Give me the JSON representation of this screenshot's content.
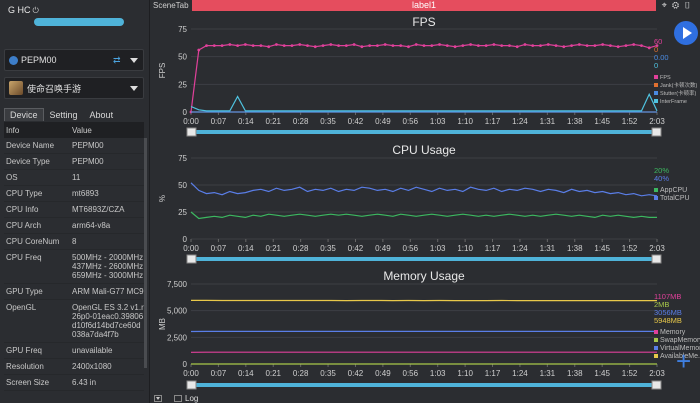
{
  "user": {
    "name": "G HC",
    "power_icon": "power-icon"
  },
  "device_select": {
    "value": "PEPM00",
    "icon": "phone-chip-icon"
  },
  "app_select": {
    "value": "使命召唤手游"
  },
  "tabs": [
    {
      "label": "Device",
      "active": true
    },
    {
      "label": "Setting",
      "active": false
    },
    {
      "label": "About",
      "active": false
    }
  ],
  "table": {
    "headers": [
      "Info",
      "Value"
    ],
    "rows": [
      [
        "Device Name",
        "PEPM00"
      ],
      [
        "Device Type",
        "PEPM00"
      ],
      [
        "OS",
        "11"
      ],
      [
        "CPU Type",
        "mt6893"
      ],
      [
        "CPU Info",
        "MT6893Z/CZA"
      ],
      [
        "CPU Arch",
        "arm64-v8a"
      ],
      [
        "CPU CoreNum",
        "8"
      ],
      [
        "CPU Freq",
        "500MHz - 2000MHz 437MHz - 2600MHz 659MHz - 3000MHz"
      ],
      [
        "GPU Type",
        "ARM Mali-G77 MC9"
      ],
      [
        "OpenGL",
        "OpenGL ES 3.2 v1.r26p0-01eac0.39806d10f6d14bd7ce60d038a7da4f7b"
      ],
      [
        "GPU Freq",
        "unavailable"
      ],
      [
        "Resolution",
        "2400x1080"
      ],
      [
        "Screen Size",
        "6.43 in"
      ]
    ]
  },
  "scene_tab": "SceneTab",
  "label_bar": "label1",
  "bottom": {
    "log_label": "Log"
  },
  "colors": {
    "accent": "#2f6fe0",
    "label_bar": "#e54d5e",
    "slider": "#4fb3d9"
  },
  "x_ticks": [
    "0:00",
    "0:07",
    "0:14",
    "0:21",
    "0:28",
    "0:35",
    "0:42",
    "0:49",
    "0:56",
    "1:03",
    "1:10",
    "1:17",
    "1:24",
    "1:31",
    "1:38",
    "1:45",
    "1:52",
    "2:03"
  ],
  "charts": [
    {
      "id": "fps",
      "title": "FPS",
      "ylabel": "FPS",
      "ylim": [
        0,
        75
      ],
      "yticks": [
        "0",
        "25",
        "50",
        "75"
      ],
      "current_values": [
        {
          "text": "60",
          "color": "#e0409a"
        },
        {
          "text": "0",
          "color": "#e07030"
        },
        {
          "text": "0.00",
          "color": "#4a8ae0"
        },
        {
          "text": "0",
          "color": "#4fc3e0"
        }
      ],
      "legend": [
        {
          "label": "FPS",
          "color": "#e0409a"
        },
        {
          "label": "Jank(卡顿次数)",
          "color": "#e07030"
        },
        {
          "label": "Stutter(卡顿率)",
          "color": "#4a8ae0"
        },
        {
          "label": "InterFrame",
          "color": "#4fc3e0"
        }
      ]
    },
    {
      "id": "cpu",
      "title": "CPU Usage",
      "ylabel": "%",
      "ylim": [
        0,
        75
      ],
      "yticks": [
        "0",
        "25",
        "50",
        "75"
      ],
      "current_values": [
        {
          "text": "20%",
          "color": "#3cb860"
        },
        {
          "text": "40%",
          "color": "#5a7ee8"
        }
      ],
      "legend": [
        {
          "label": "AppCPU",
          "color": "#3cb860"
        },
        {
          "label": "TotalCPU",
          "color": "#5a7ee8"
        }
      ]
    },
    {
      "id": "memory",
      "title": "Memory Usage",
      "ylabel": "MB",
      "ylim": [
        0,
        7500
      ],
      "yticks": [
        "0",
        "2,500",
        "5,000",
        "7,500"
      ],
      "current_values": [
        {
          "text": "1107MB",
          "color": "#e0409a"
        },
        {
          "text": "2MB",
          "color": "#a8c84a"
        },
        {
          "text": "3056MB",
          "color": "#5a7ee8"
        },
        {
          "text": "5948MB",
          "color": "#e8c84a"
        }
      ],
      "legend": [
        {
          "label": "Memory",
          "color": "#e0409a"
        },
        {
          "label": "SwapMemory",
          "color": "#a8c84a"
        },
        {
          "label": "VirtualMemory",
          "color": "#5a7ee8"
        },
        {
          "label": "AvailableMe...",
          "color": "#e8c84a"
        }
      ]
    }
  ],
  "chart_data": [
    {
      "type": "line",
      "title": "FPS",
      "xlabel": "",
      "ylabel": "FPS",
      "ylim": [
        0,
        75
      ],
      "x_range": [
        "0:00",
        "2:03"
      ],
      "series": [
        {
          "name": "FPS",
          "values": [
            0,
            56,
            60,
            60,
            60,
            61,
            60,
            61,
            60,
            60,
            59,
            61,
            60,
            60,
            61,
            60,
            59,
            60,
            61,
            60,
            60,
            61,
            59,
            60,
            60,
            61,
            60,
            60,
            59,
            61,
            60,
            60,
            61,
            60,
            59,
            60,
            61,
            60,
            60,
            61,
            60,
            60,
            59,
            61,
            60,
            60,
            61,
            60,
            59,
            60,
            61,
            60,
            60,
            61,
            60,
            59,
            60,
            61,
            60,
            58,
            60
          ]
        },
        {
          "name": "Jank(卡顿次数)",
          "values": [
            0,
            0,
            0,
            0,
            0,
            0,
            0,
            0,
            0,
            0,
            0,
            0,
            0,
            0,
            0,
            0,
            0,
            0,
            0,
            0,
            0,
            0,
            0,
            0,
            0,
            0,
            0,
            0,
            0,
            0,
            0,
            0,
            0,
            0,
            0,
            0,
            0,
            0,
            0,
            0,
            0,
            0,
            0,
            0,
            0,
            0,
            0,
            0,
            0,
            0,
            0,
            0,
            0,
            0,
            0,
            0,
            0,
            0,
            0,
            0,
            0
          ]
        },
        {
          "name": "Stutter(卡顿率)",
          "values": [
            0,
            0,
            0,
            0,
            0,
            0,
            0,
            0,
            0,
            0,
            0,
            0,
            0,
            0,
            0,
            0,
            0,
            0,
            0,
            0,
            0,
            0,
            0,
            0,
            0,
            0,
            0,
            0,
            0,
            0,
            0,
            0,
            0,
            0,
            0,
            0,
            0,
            0,
            0,
            0,
            0,
            0,
            0,
            0,
            0,
            0,
            0,
            0,
            0,
            0,
            0,
            0,
            0,
            0,
            0,
            0,
            0,
            0,
            0,
            0,
            0
          ]
        },
        {
          "name": "InterFrame",
          "values": [
            5,
            2,
            1,
            1,
            1,
            1,
            14,
            1,
            1,
            1,
            1,
            1,
            1,
            1,
            1,
            1,
            1,
            1,
            1,
            1,
            1,
            1,
            1,
            1,
            1,
            1,
            1,
            1,
            1,
            1,
            1,
            1,
            1,
            1,
            1,
            1,
            1,
            1,
            1,
            1,
            1,
            1,
            1,
            1,
            1,
            1,
            1,
            1,
            1,
            1,
            1,
            1,
            1,
            1,
            1,
            1,
            1,
            1,
            1,
            16,
            1
          ]
        }
      ]
    },
    {
      "type": "line",
      "title": "CPU Usage",
      "xlabel": "",
      "ylabel": "%",
      "ylim": [
        0,
        75
      ],
      "x_range": [
        "0:00",
        "2:03"
      ],
      "series": [
        {
          "name": "AppCPU",
          "values": [
            25,
            19,
            20,
            21,
            20,
            22,
            21,
            20,
            22,
            21,
            23,
            22,
            21,
            22,
            23,
            22,
            21,
            22,
            23,
            22,
            23,
            22,
            21,
            22,
            23,
            22,
            21,
            23,
            22,
            21,
            22,
            23,
            22,
            21,
            22,
            23,
            22,
            21,
            22,
            21,
            22,
            23,
            22,
            21,
            22,
            21,
            22,
            23,
            22,
            21,
            22,
            21,
            20,
            22,
            21,
            22,
            21,
            20,
            21,
            20,
            20
          ]
        },
        {
          "name": "TotalCPU",
          "values": [
            52,
            45,
            42,
            43,
            41,
            44,
            42,
            43,
            45,
            46,
            44,
            47,
            45,
            46,
            48,
            44,
            46,
            45,
            47,
            44,
            46,
            45,
            48,
            47,
            45,
            46,
            44,
            47,
            45,
            48,
            46,
            44,
            47,
            45,
            46,
            44,
            48,
            46,
            45,
            47,
            44,
            46,
            45,
            47,
            46,
            44,
            46,
            45,
            43,
            46,
            44,
            45,
            43,
            44,
            42,
            43,
            41,
            42,
            40,
            41,
            40
          ]
        }
      ]
    },
    {
      "type": "line",
      "title": "Memory Usage",
      "xlabel": "",
      "ylabel": "MB",
      "ylim": [
        0,
        7500
      ],
      "x_range": [
        "0:00",
        "2:03"
      ],
      "series": [
        {
          "name": "Memory",
          "values": [
            1100,
            1105,
            1107,
            1106,
            1107,
            1108,
            1107,
            1106,
            1107,
            1108,
            1107,
            1107,
            1106,
            1107,
            1108,
            1107,
            1107,
            1106,
            1107,
            1108,
            1107,
            1107,
            1106,
            1107,
            1108,
            1107,
            1107,
            1106,
            1107,
            1108,
            1107
          ]
        },
        {
          "name": "SwapMemory",
          "values": [
            2,
            2,
            2,
            2,
            2,
            2,
            2,
            2,
            2,
            2,
            2,
            2,
            2,
            2,
            2,
            2,
            2,
            2,
            2,
            2,
            2,
            2,
            2,
            2,
            2,
            2,
            2,
            2,
            2,
            2,
            2
          ]
        },
        {
          "name": "VirtualMemory",
          "values": [
            3050,
            3052,
            3054,
            3055,
            3056,
            3056,
            3055,
            3056,
            3057,
            3056,
            3056,
            3055,
            3056,
            3057,
            3056,
            3056,
            3055,
            3056,
            3057,
            3056,
            3056,
            3055,
            3056,
            3057,
            3056,
            3056,
            3055,
            3056,
            3057,
            3056,
            3056
          ]
        },
        {
          "name": "AvailableMe...",
          "values": [
            5960,
            5958,
            5955,
            5952,
            5950,
            5950,
            5951,
            5949,
            5950,
            5950,
            5948,
            5949,
            5950,
            5948,
            5949,
            5948,
            5949,
            5948,
            5947,
            5948,
            5949,
            5948,
            5947,
            5948,
            5948,
            5947,
            5948,
            5948,
            5947,
            5948,
            5948
          ]
        }
      ]
    }
  ]
}
